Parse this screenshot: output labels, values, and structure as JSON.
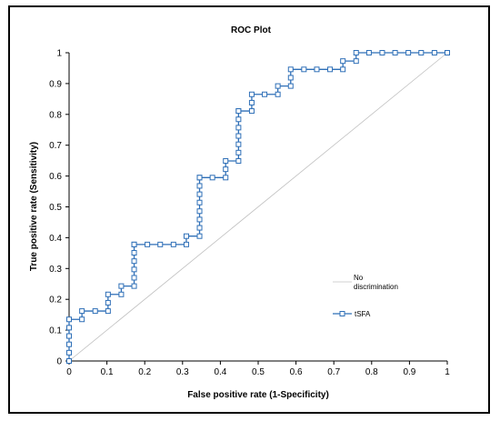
{
  "chart_data": {
    "type": "line",
    "title": "ROC Plot",
    "xlabel": "False positive rate (1-Specificity)",
    "ylabel": "True positive rate (Sensitivity)",
    "xlim": [
      0,
      1
    ],
    "ylim": [
      0,
      1
    ],
    "x_ticks": [
      "0",
      "0.1",
      "0.2",
      "0.3",
      "0.4",
      "0.5",
      "0.6",
      "0.7",
      "0.8",
      "0.9",
      "1"
    ],
    "y_ticks": [
      "0",
      "0.1",
      "0.2",
      "0.3",
      "0.4",
      "0.5",
      "0.6",
      "0.7",
      "0.8",
      "0.9",
      "1"
    ],
    "grid": false,
    "legend_position": "bottom-right",
    "reference_line": {
      "name": "No discrimination",
      "legend_lines": [
        "No",
        "discrimination"
      ],
      "color": "#c0c0c0",
      "x": [
        0,
        1
      ],
      "y": [
        0,
        1
      ]
    },
    "series": [
      {
        "name": "tSFA",
        "color": "#2e6fb7",
        "marker_fill": "#ffffff",
        "x": [
          0,
          0,
          0,
          0,
          0,
          0,
          0.034,
          0.034,
          0.069,
          0.103,
          0.103,
          0.103,
          0.138,
          0.138,
          0.172,
          0.172,
          0.172,
          0.172,
          0.172,
          0.172,
          0.172,
          0.207,
          0.241,
          0.276,
          0.31,
          0.31,
          0.345,
          0.345,
          0.345,
          0.345,
          0.345,
          0.345,
          0.345,
          0.345,
          0.345,
          0.379,
          0.414,
          0.414,
          0.414,
          0.448,
          0.448,
          0.448,
          0.448,
          0.448,
          0.448,
          0.448,
          0.448,
          0.483,
          0.483,
          0.483,
          0.517,
          0.552,
          0.552,
          0.586,
          0.586,
          0.586,
          0.621,
          0.655,
          0.69,
          0.724,
          0.724,
          0.759,
          0.759,
          0.793,
          0.828,
          0.862,
          0.897,
          0.931,
          0.966,
          1
        ],
        "y": [
          0,
          0.027,
          0.054,
          0.081,
          0.108,
          0.135,
          0.135,
          0.162,
          0.162,
          0.162,
          0.189,
          0.216,
          0.216,
          0.243,
          0.243,
          0.27,
          0.297,
          0.324,
          0.351,
          0.378,
          0.378,
          0.378,
          0.378,
          0.378,
          0.378,
          0.405,
          0.405,
          0.432,
          0.459,
          0.486,
          0.514,
          0.541,
          0.568,
          0.595,
          0.595,
          0.595,
          0.595,
          0.622,
          0.649,
          0.649,
          0.676,
          0.703,
          0.73,
          0.757,
          0.784,
          0.811,
          0.811,
          0.811,
          0.838,
          0.865,
          0.865,
          0.865,
          0.892,
          0.892,
          0.919,
          0.946,
          0.946,
          0.946,
          0.946,
          0.946,
          0.973,
          0.973,
          1,
          1,
          1,
          1,
          1,
          1,
          1,
          1
        ]
      }
    ]
  }
}
